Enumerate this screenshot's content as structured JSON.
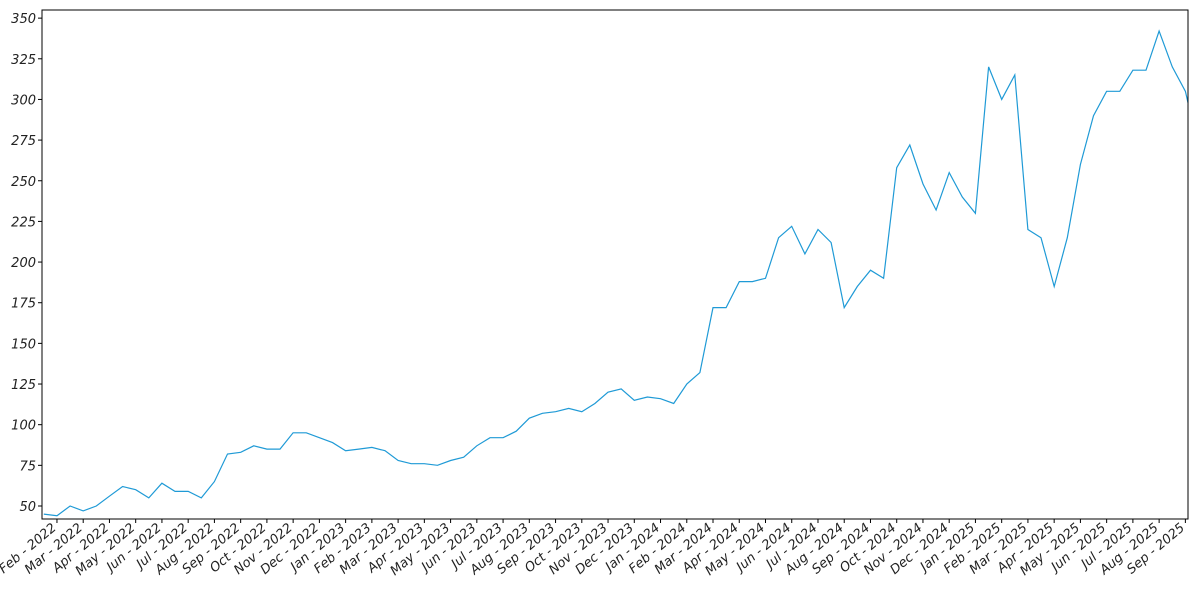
{
  "chart_data": {
    "type": "line",
    "x": [
      -0.5,
      0,
      0.5,
      1,
      1.5,
      2,
      2.5,
      3,
      3.5,
      4,
      4.5,
      5,
      5.5,
      6,
      6.5,
      7,
      7.5,
      8,
      8.5,
      9,
      9.5,
      10,
      10.5,
      11,
      11.5,
      12,
      12.5,
      13,
      13.5,
      14,
      14.5,
      15,
      15.5,
      16,
      16.5,
      17,
      17.5,
      18,
      18.5,
      19,
      19.5,
      20,
      20.5,
      21,
      21.5,
      22,
      22.5,
      23,
      23.5,
      24,
      24.5,
      25,
      25.5,
      26,
      26.5,
      27,
      27.5,
      28,
      28.5,
      29,
      29.5,
      30,
      30.5,
      31,
      31.5,
      32,
      32.5,
      33,
      33.5,
      34,
      34.5,
      35,
      35.5,
      36,
      36.5,
      37,
      37.5,
      38,
      38.5,
      39,
      39.5,
      40,
      40.5,
      41,
      41.5,
      42,
      42.5,
      43,
      43.1
    ],
    "series": [
      {
        "color": "#1f9ad6",
        "values": [
          45,
          44,
          50,
          47,
          50,
          56,
          62,
          60,
          55,
          64,
          59,
          59,
          55,
          65,
          82,
          83,
          87,
          85,
          85,
          95,
          95,
          92,
          89,
          84,
          85,
          86,
          84,
          78,
          76,
          76,
          75,
          78,
          80,
          87,
          92,
          92,
          96,
          104,
          107,
          108,
          110,
          108,
          113,
          120,
          122,
          115,
          117,
          116,
          113,
          125,
          132,
          172,
          172,
          188,
          188,
          190,
          215,
          222,
          205,
          220,
          212,
          172,
          185,
          195,
          190,
          258,
          272,
          248,
          232,
          255,
          240,
          230,
          320,
          300,
          315,
          220,
          215,
          185,
          215,
          260,
          290,
          305,
          305,
          318,
          318,
          342,
          320,
          305,
          298
        ]
      }
    ],
    "xlim": [
      -0.57,
      43.1
    ],
    "ylim": [
      42,
      355
    ],
    "yticks": [
      50,
      75,
      100,
      125,
      150,
      175,
      200,
      225,
      250,
      275,
      300,
      325,
      350
    ],
    "xticks": [
      {
        "value": 0,
        "label": "Feb - 2022"
      },
      {
        "value": 1,
        "label": "Mar - 2022"
      },
      {
        "value": 2,
        "label": "Apr - 2022"
      },
      {
        "value": 3,
        "label": "May - 2022"
      },
      {
        "value": 4,
        "label": "Jun - 2022"
      },
      {
        "value": 5,
        "label": "Jul - 2022"
      },
      {
        "value": 6,
        "label": "Aug - 2022"
      },
      {
        "value": 7,
        "label": "Sep - 2022"
      },
      {
        "value": 8,
        "label": "Oct - 2022"
      },
      {
        "value": 9,
        "label": "Nov - 2022"
      },
      {
        "value": 10,
        "label": "Dec - 2022"
      },
      {
        "value": 11,
        "label": "Jan - 2023"
      },
      {
        "value": 12,
        "label": "Feb - 2023"
      },
      {
        "value": 13,
        "label": "Mar - 2023"
      },
      {
        "value": 14,
        "label": "Apr - 2023"
      },
      {
        "value": 15,
        "label": "May - 2023"
      },
      {
        "value": 16,
        "label": "Jun - 2023"
      },
      {
        "value": 17,
        "label": "Jul - 2023"
      },
      {
        "value": 18,
        "label": "Aug - 2023"
      },
      {
        "value": 19,
        "label": "Sep - 2023"
      },
      {
        "value": 20,
        "label": "Oct - 2023"
      },
      {
        "value": 21,
        "label": "Nov - 2023"
      },
      {
        "value": 22,
        "label": "Dec - 2023"
      },
      {
        "value": 23,
        "label": "Jan - 2024"
      },
      {
        "value": 24,
        "label": "Feb - 2024"
      },
      {
        "value": 25,
        "label": "Mar - 2024"
      },
      {
        "value": 26,
        "label": "Apr - 2024"
      },
      {
        "value": 27,
        "label": "May - 2024"
      },
      {
        "value": 28,
        "label": "Jun - 2024"
      },
      {
        "value": 29,
        "label": "Jul - 2024"
      },
      {
        "value": 30,
        "label": "Aug - 2024"
      },
      {
        "value": 31,
        "label": "Sep - 2024"
      },
      {
        "value": 32,
        "label": "Oct - 2024"
      },
      {
        "value": 33,
        "label": "Nov - 2024"
      },
      {
        "value": 34,
        "label": "Dec - 2024"
      },
      {
        "value": 35,
        "label": "Jan - 2025"
      },
      {
        "value": 36,
        "label": "Feb - 2025"
      },
      {
        "value": 37,
        "label": "Mar - 2025"
      },
      {
        "value": 38,
        "label": "Apr - 2025"
      },
      {
        "value": 39,
        "label": "May - 2025"
      },
      {
        "value": 40,
        "label": "Jun - 2025"
      },
      {
        "value": 41,
        "label": "Jul - 2025"
      },
      {
        "value": 42,
        "label": "Aug - 2025"
      },
      {
        "value": 43,
        "label": "Sep - 2025"
      }
    ]
  }
}
